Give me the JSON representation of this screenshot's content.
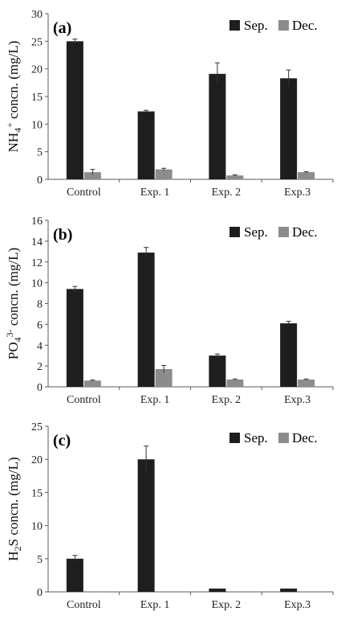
{
  "colors": {
    "sep": "#1e1e1e",
    "dec": "#8c8c8c",
    "axis": "#595959"
  },
  "legend": {
    "sep": "Sep.",
    "dec": "Dec."
  },
  "chart_data": [
    {
      "type": "bar",
      "panel_label": "(a)",
      "ylabel": {
        "base": "NH",
        "sub": "4",
        "sup": "+",
        "rest": " concn. (mg/L)"
      },
      "ylim": [
        0,
        30
      ],
      "yticks": [
        0,
        5,
        10,
        15,
        20,
        25,
        30
      ],
      "categories": [
        "Control",
        "Exp. 1",
        "Exp. 2",
        "Exp.3"
      ],
      "series": [
        {
          "name": "Sep.",
          "values": [
            25.0,
            12.3,
            19.1,
            18.3
          ],
          "errors": [
            0.4,
            0.2,
            2.0,
            1.5
          ]
        },
        {
          "name": "Dec.",
          "values": [
            1.3,
            1.8,
            0.7,
            1.3
          ],
          "errors": [
            0.5,
            0.2,
            0.1,
            0.1
          ]
        }
      ]
    },
    {
      "type": "bar",
      "panel_label": "(b)",
      "ylabel": {
        "base": "PO",
        "sub": "4",
        "sup": "3-",
        "rest": " concn. (mg/L)"
      },
      "ylim": [
        0,
        16
      ],
      "yticks": [
        0,
        2,
        4,
        6,
        8,
        10,
        12,
        14,
        16
      ],
      "categories": [
        "Control",
        "Exp. 1",
        "Exp. 2",
        "Exp.3"
      ],
      "series": [
        {
          "name": "Sep.",
          "values": [
            9.4,
            12.9,
            3.0,
            6.1
          ],
          "errors": [
            0.25,
            0.5,
            0.15,
            0.2
          ]
        },
        {
          "name": "Dec.",
          "values": [
            0.6,
            1.7,
            0.7,
            0.7
          ],
          "errors": [
            0.05,
            0.35,
            0.05,
            0.05
          ]
        }
      ]
    },
    {
      "type": "bar",
      "panel_label": "(c)",
      "ylabel": {
        "base": "H",
        "sub": "2",
        "sup": "",
        "rest": "S concn. (mg/L)"
      },
      "ylim": [
        0,
        25
      ],
      "yticks": [
        0,
        5,
        10,
        15,
        20,
        25
      ],
      "categories": [
        "Control",
        "Exp. 1",
        "Exp. 2",
        "Exp.3"
      ],
      "series": [
        {
          "name": "Sep.",
          "values": [
            5.0,
            20.0,
            0.5,
            0.5
          ],
          "errors": [
            0.5,
            2.0,
            0,
            0
          ]
        },
        {
          "name": "Dec.",
          "values": [
            0,
            0,
            0,
            0
          ],
          "errors": [
            0,
            0,
            0,
            0
          ]
        }
      ]
    }
  ]
}
